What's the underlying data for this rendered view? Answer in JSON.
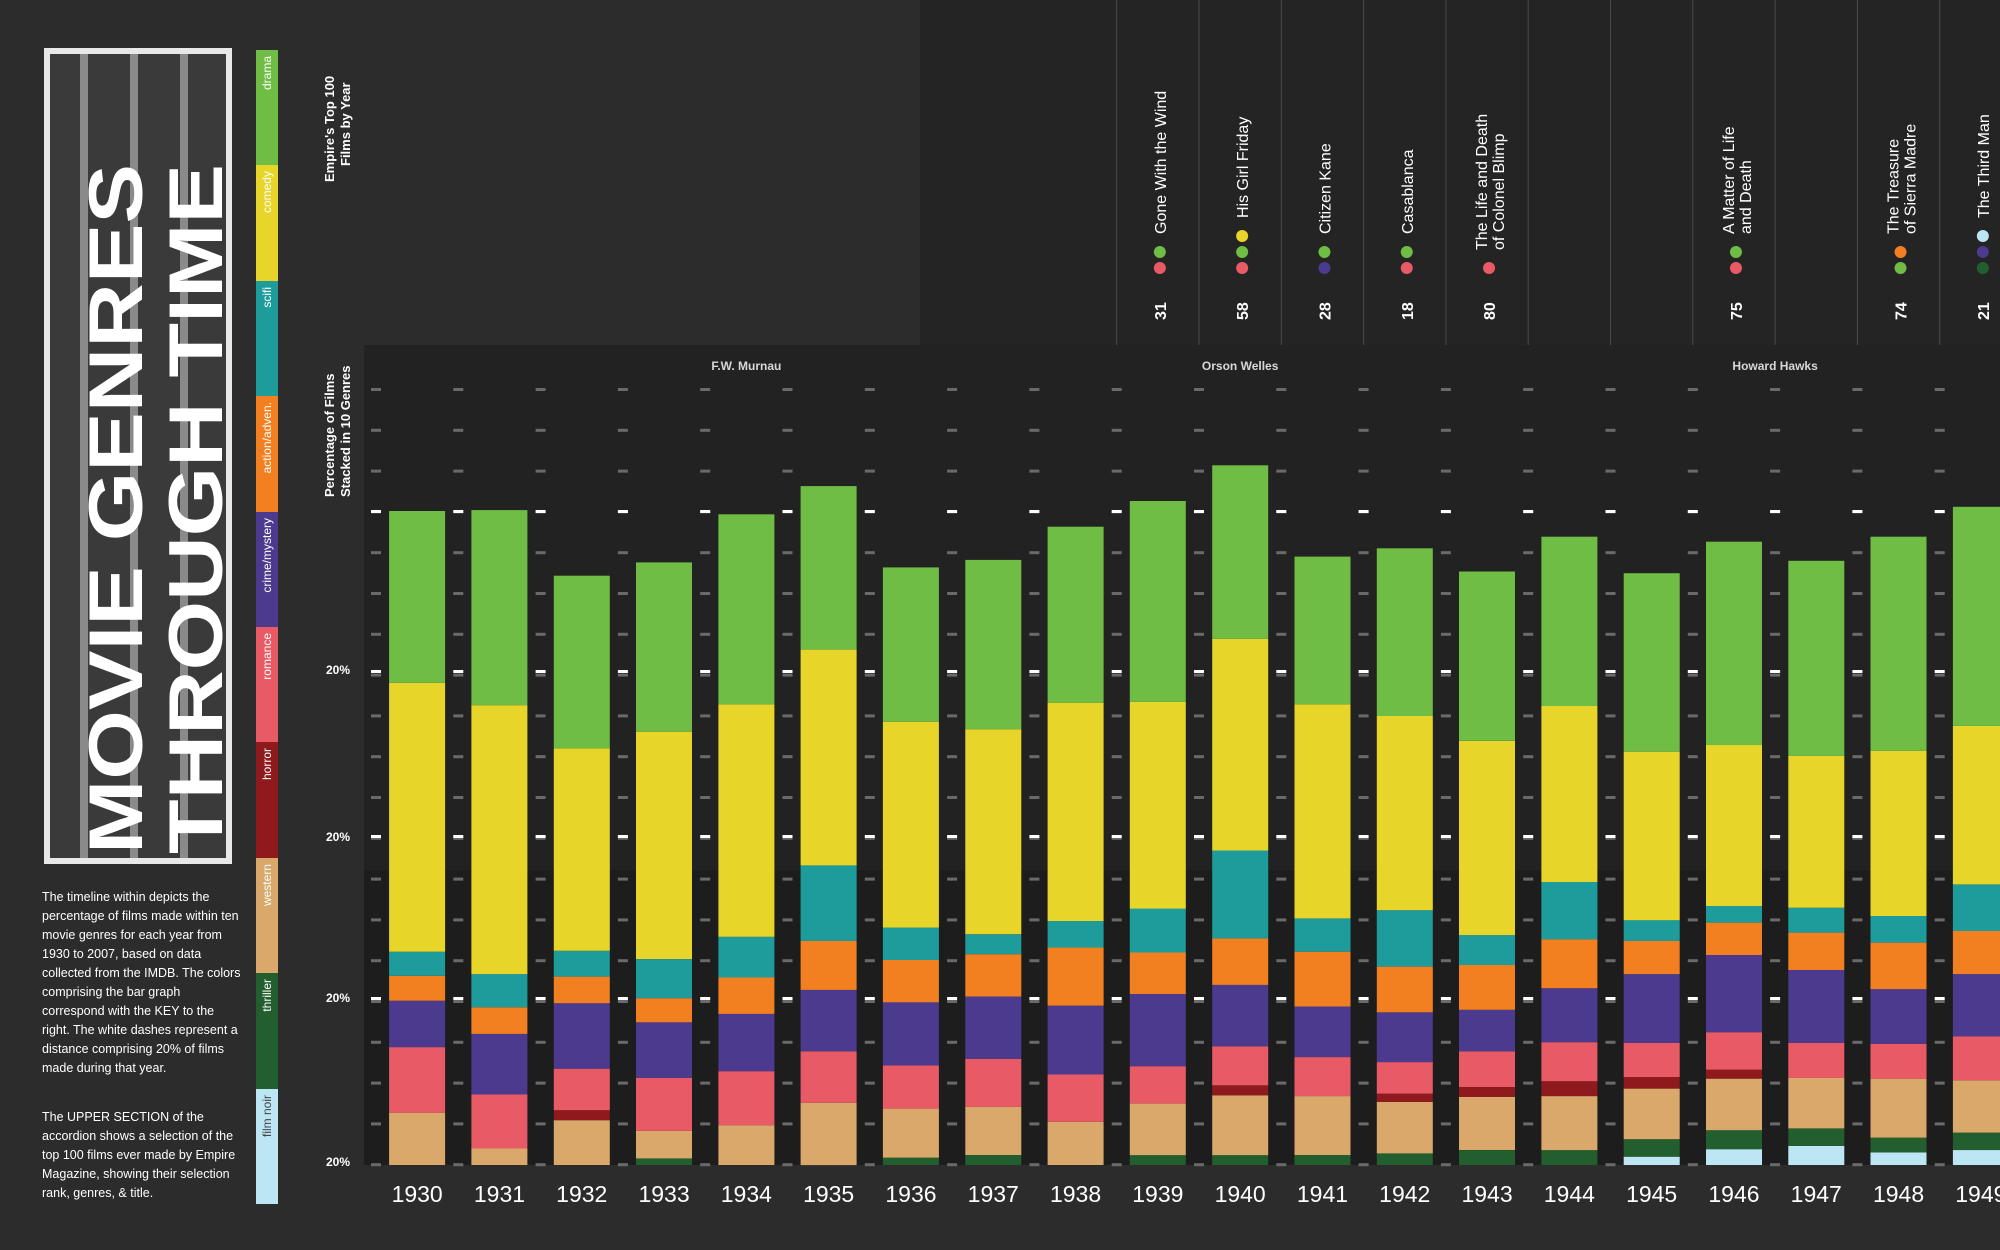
{
  "title": {
    "line1": "MOVIE GENRES",
    "line2": "THROUGH TIME"
  },
  "genres": [
    {
      "name": "drama",
      "color": "#6fbd44"
    },
    {
      "name": "comedy",
      "color": "#e8d52a"
    },
    {
      "name": "scifi",
      "color": "#1e9c9c"
    },
    {
      "name": "action/adven.",
      "color": "#f28020"
    },
    {
      "name": "crime/mystery",
      "color": "#4b3a8e"
    },
    {
      "name": "romance",
      "color": "#e85b66"
    },
    {
      "name": "horror",
      "color": "#8e1a1e"
    },
    {
      "name": "western",
      "color": "#d9a86a"
    },
    {
      "name": "thriller",
      "color": "#235e2f"
    },
    {
      "name": "film noir",
      "color": "#bde6f5"
    }
  ],
  "description": {
    "p1": "The timeline within depicts the percentage of films made within ten movie genres for each year from 1930 to 2007, based on data collected from the IMDB. The colors comprising the bar graph correspond with the KEY to the right. The white dashes represent a distance comprising 20% of films made during that year.",
    "p2": "The UPPER SECTION of the accordion shows a selection of the top 100 films ever made by Empire Magazine, showing their selection rank, genres, & title."
  },
  "upper_label": "Empire's Top 100 Films by Year",
  "chart_label": "Percentage of Films Stacked in 10 Genres",
  "directors": [
    {
      "name": "F.W. Murnau",
      "year": "1934"
    },
    {
      "name": "Orson Welles",
      "year": "1940"
    },
    {
      "name": "Howard Hawks",
      "year": "1946.5"
    }
  ],
  "films": [
    {
      "year": 1939,
      "rank": "31",
      "title": "Gone With the Wind",
      "genres": [
        "romance",
        "drama"
      ]
    },
    {
      "year": 1940,
      "rank": "58",
      "title": "His Girl Friday",
      "genres": [
        "romance",
        "drama",
        "comedy"
      ]
    },
    {
      "year": 1941,
      "rank": "28",
      "title": "Citizen Kane",
      "genres": [
        "crime/mystery",
        "drama"
      ]
    },
    {
      "year": 1942,
      "rank": "18",
      "title": "Casablanca",
      "genres": [
        "romance",
        "drama"
      ]
    },
    {
      "year": 1943,
      "rank": "80",
      "title": "The Life and Death of Colonel Blimp",
      "genres": [
        "romance"
      ]
    },
    {
      "year": 1946,
      "rank": "75",
      "title": "A Matter of Life and Death",
      "genres": [
        "romance",
        "drama"
      ]
    },
    {
      "year": 1948,
      "rank": "74",
      "title": "The Treasure of Sierra Madre",
      "genres": [
        "drama",
        "action/adven."
      ]
    },
    {
      "year": 1949,
      "rank": "21",
      "title": "The Third Man",
      "genres": [
        "thriller",
        "crime/mystery",
        "film noir"
      ]
    }
  ],
  "chart_data": {
    "type": "bar",
    "stacked": true,
    "ylabel": "Percentage of Films Stacked in 10 Genres",
    "y_tick_labels": [
      "20%",
      "20%",
      "20%",
      "20%"
    ],
    "categories": [
      "1930",
      "1931",
      "1932",
      "1933",
      "1934",
      "1935",
      "1936",
      "1937",
      "1938",
      "1939",
      "1940",
      "1941",
      "1942",
      "1943",
      "1944",
      "1945",
      "1946",
      "1947",
      "1948",
      "1949"
    ],
    "series": [
      {
        "name": "film noir",
        "values": [
          0,
          0,
          0,
          0,
          0,
          0,
          0,
          0,
          0,
          0,
          0,
          0,
          0,
          0,
          0,
          1,
          1.9,
          2.3,
          1.5,
          1.8
        ]
      },
      {
        "name": "thriller",
        "values": [
          0,
          0,
          0,
          0.8,
          0,
          0,
          0.9,
          1.2,
          0,
          1.2,
          1.2,
          1.2,
          1.4,
          1.8,
          1.8,
          2.1,
          2.3,
          2.1,
          1.8,
          2.1
        ]
      },
      {
        "name": "western",
        "values": [
          6.3,
          2,
          5.4,
          3.3,
          4.8,
          7.5,
          5.9,
          5.8,
          5.2,
          6.2,
          7.2,
          7.1,
          6.2,
          6.4,
          6.5,
          6.1,
          6.2,
          6.1,
          7.1,
          6.3
        ]
      },
      {
        "name": "horror",
        "values": [
          0,
          0,
          1.2,
          0,
          0,
          0,
          0,
          0,
          0,
          0,
          1.2,
          0,
          1,
          1.2,
          1.8,
          1.4,
          1.1,
          0,
          0,
          0
        ]
      },
      {
        "name": "romance",
        "values": [
          7.9,
          6.5,
          5,
          6.4,
          6.5,
          6.2,
          5.2,
          5.8,
          5.7,
          4.5,
          4.7,
          4.7,
          3.8,
          4.3,
          4.7,
          4.1,
          4.5,
          4.2,
          4.2,
          5.3
        ]
      },
      {
        "name": "crime/mystery",
        "values": [
          5.6,
          7.3,
          7.9,
          6.7,
          6.9,
          7.4,
          7.6,
          7.5,
          8.3,
          8.7,
          7.4,
          6.1,
          6,
          5,
          6.5,
          8.3,
          9.3,
          8.8,
          6.6,
          7.5
        ]
      },
      {
        "name": "action/adven.",
        "values": [
          3,
          3.2,
          3.2,
          2.9,
          4.4,
          5.9,
          5.1,
          5.1,
          7,
          5,
          5.6,
          6.6,
          5.5,
          5.4,
          5.9,
          4,
          3.9,
          4.5,
          5.6,
          5.2
        ]
      },
      {
        "name": "scifi",
        "values": [
          2.9,
          4,
          3.1,
          4.7,
          4.9,
          9.1,
          3.9,
          2.4,
          3.2,
          5.3,
          10.6,
          4,
          6.8,
          3.6,
          6.9,
          2.5,
          2,
          3,
          3.2,
          5.6
        ]
      },
      {
        "name": "comedy",
        "values": [
          32.4,
          32.4,
          24.4,
          27.4,
          28,
          26,
          24.8,
          24.7,
          26.3,
          24.9,
          25.5,
          25.8,
          23.4,
          23.4,
          21.2,
          20.3,
          19.4,
          18.3,
          19.9,
          19.1
        ]
      },
      {
        "name": "drama",
        "values": [
          20.7,
          23.5,
          20.8,
          20.4,
          22.9,
          19.7,
          18.6,
          20.4,
          21.2,
          24.2,
          20.9,
          17.8,
          20.2,
          20.4,
          20.4,
          21.5,
          24.5,
          23.5,
          25.8,
          26.4
        ]
      }
    ]
  }
}
